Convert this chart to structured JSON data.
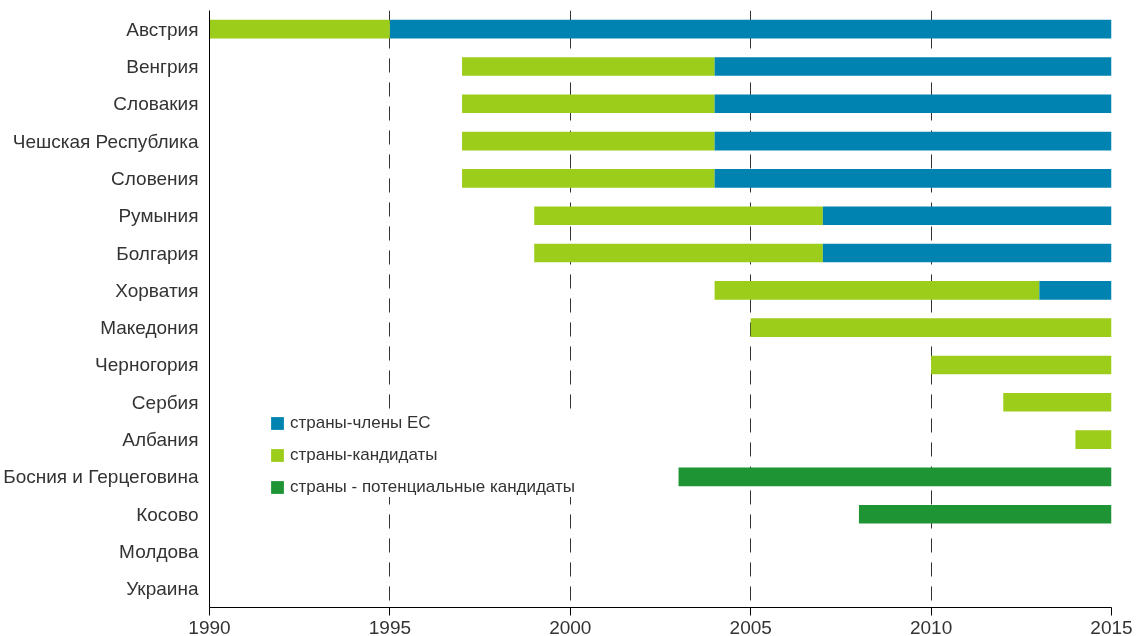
{
  "chart_data": {
    "type": "bar",
    "orientation": "horizontal",
    "categories": [
      "Австрия",
      "Венгрия",
      "Словакия",
      "Чешская Республика",
      "Словения",
      "Румыния",
      "Болгария",
      "Хорватия",
      "Македония",
      "Черногория",
      "Сербия",
      "Албания",
      "Босния и Герцеговина",
      "Косово",
      "Молдова",
      "Украина"
    ],
    "series": [
      {
        "name": "страны - потенциальные кандидаты",
        "color": "#1e9434",
        "base": [
          null,
          null,
          null,
          null,
          null,
          null,
          null,
          null,
          null,
          null,
          null,
          null,
          2003,
          2008,
          null,
          null
        ],
        "values": [
          null,
          null,
          null,
          null,
          null,
          null,
          null,
          null,
          null,
          null,
          null,
          null,
          12,
          7,
          null,
          null
        ]
      },
      {
        "name": "страны-кандидаты",
        "color": "#9ccd1a",
        "base": [
          1990,
          1997,
          1997,
          1997,
          1997,
          1999,
          1999,
          2004,
          2005,
          2010,
          2012,
          2014,
          null,
          null,
          null,
          null
        ],
        "values": [
          5,
          7,
          7,
          7,
          7,
          8,
          8,
          9,
          10,
          5,
          3,
          1,
          null,
          null,
          null,
          null
        ]
      },
      {
        "name": "страны-члены ЕС",
        "color": "#0083b0",
        "base": [
          1995,
          2004,
          2004,
          2004,
          2004,
          2007,
          2007,
          2013,
          null,
          null,
          null,
          null,
          null,
          null,
          null,
          null
        ],
        "values": [
          20,
          11,
          11,
          11,
          11,
          8,
          8,
          2,
          null,
          null,
          null,
          null,
          null,
          null,
          null,
          null
        ]
      }
    ],
    "xlim": [
      1990,
      2015
    ],
    "xticks": [
      1990,
      1995,
      2000,
      2005,
      2010,
      2015
    ],
    "grid": "x",
    "legend": "left"
  }
}
